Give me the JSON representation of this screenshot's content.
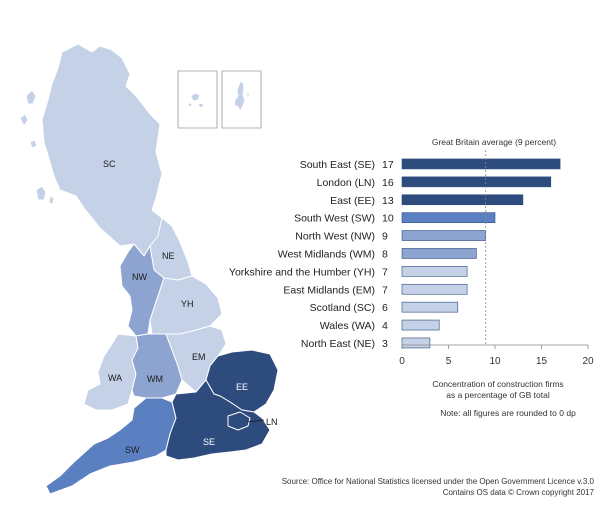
{
  "colors": {
    "very_light": "#c4d1e6",
    "light": "#a6b9db",
    "medium_light": "#8ca4cf",
    "medium": "#5b80c2",
    "dark": "#2e4b7e",
    "border": "#ffffff"
  },
  "map": {
    "regions": [
      {
        "code": "SC",
        "label": "SC",
        "value": 6
      },
      {
        "code": "NE",
        "label": "NE",
        "value": 3
      },
      {
        "code": "NW",
        "label": "NW",
        "value": 9
      },
      {
        "code": "YH",
        "label": "YH",
        "value": 7
      },
      {
        "code": "WA",
        "label": "WA",
        "value": 4
      },
      {
        "code": "WM",
        "label": "WM",
        "value": 8
      },
      {
        "code": "EM",
        "label": "EM",
        "value": 7
      },
      {
        "code": "EE",
        "label": "EE",
        "value": 13
      },
      {
        "code": "LN",
        "label": "LN",
        "value": 16
      },
      {
        "code": "SE",
        "label": "SE",
        "value": 17
      },
      {
        "code": "SW",
        "label": "SW",
        "value": 10
      }
    ]
  },
  "chart_data": {
    "type": "bar",
    "orientation": "horizontal",
    "categories": [
      "South East (SE)",
      "London (LN)",
      "East (EE)",
      "South West (SW)",
      "North West (NW)",
      "West Midlands (WM)",
      "Yorkshire and the Humber (YH)",
      "East Midlands (EM)",
      "Scotland (SC)",
      "Wales (WA)",
      "North East (NE)"
    ],
    "values": [
      17,
      16,
      13,
      10,
      9,
      8,
      7,
      7,
      6,
      4,
      3
    ],
    "bar_colors": [
      "#2e4b7e",
      "#2e4b7e",
      "#2e4b7e",
      "#5b80c2",
      "#8ca4cf",
      "#8ca4cf",
      "#c4d1e6",
      "#c4d1e6",
      "#c4d1e6",
      "#c4d1e6",
      "#c4d1e6"
    ],
    "xlim": [
      0,
      20
    ],
    "xticks": [
      0,
      5,
      10,
      15,
      20
    ],
    "reference_line": {
      "value": 9,
      "label": "Great Britain average (9 percent)"
    },
    "xlabel_line1": "Concentration of construction firms",
    "xlabel_line2": "as a percentage of GB total",
    "note": "Note: all figures are rounded to 0 dp"
  },
  "footer": {
    "source_line1": "Source: Office for National Statistics licensed under the Open Government Licence v.3.0",
    "source_line2": "Contains OS data © Crown copyright 2017"
  }
}
